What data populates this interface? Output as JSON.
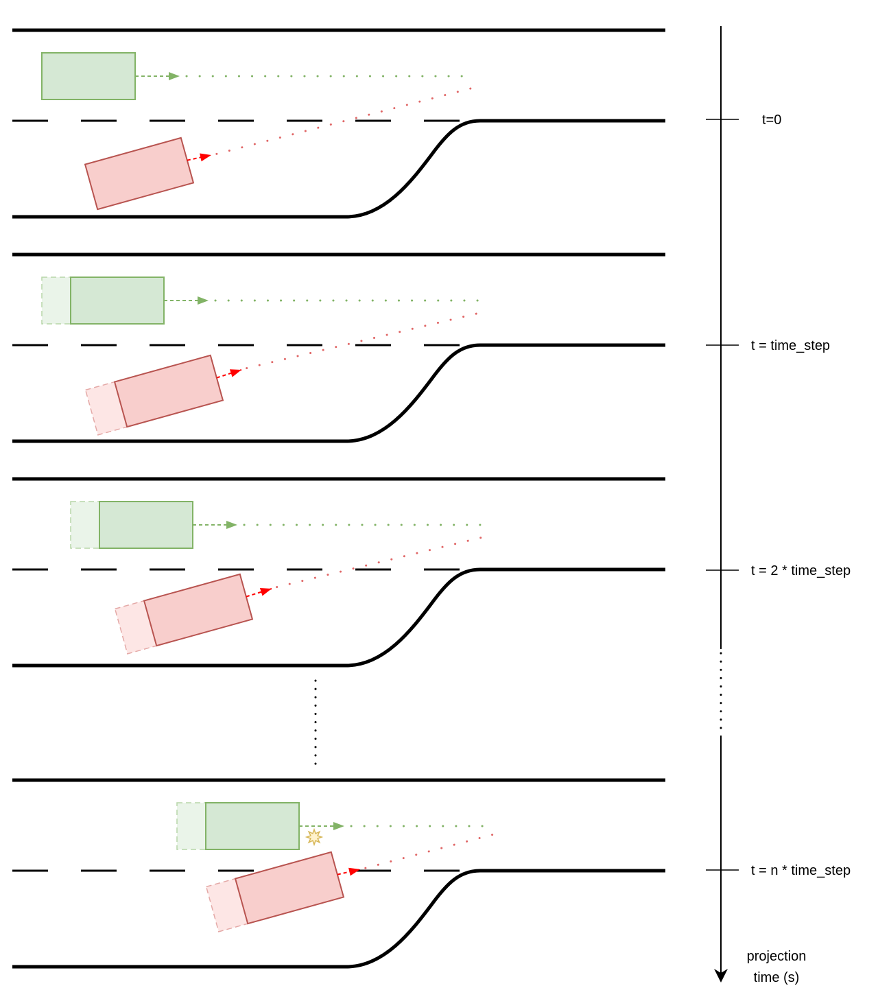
{
  "diagram": {
    "colors": {
      "road": "#000000",
      "green_fill": "#d5e8d4",
      "green_stroke": "#82b366",
      "green_ghost_fill": "#eaf4e9",
      "green_ghost_stroke": "#b7d6a8",
      "green_arrow": "#82b366",
      "red_fill": "#f8cecc",
      "red_stroke": "#b85450",
      "red_ghost_fill": "#fde6e5",
      "red_ghost_stroke": "#e4a9a7",
      "red_arrow": "#ff0000",
      "red_dots": "#e06666",
      "collision_fill": "#fff2cc",
      "collision_stroke": "#d6b656"
    },
    "icons": {
      "collision": "collision-star-icon",
      "time_axis_arrow": "arrow-down-icon"
    },
    "timeline": {
      "ticks": [
        {
          "label": "t=0"
        },
        {
          "label": "t = time_step"
        },
        {
          "label": "t = 2 * time_step"
        },
        {
          "label": "t = n * time_step"
        }
      ],
      "axis_label_line1": "projection",
      "axis_label_line2": "time (s)"
    },
    "frames": [
      {
        "step": 0,
        "collision": false
      },
      {
        "step": 1,
        "collision": false
      },
      {
        "step": 2,
        "collision": false
      },
      {
        "step": "n",
        "collision": true
      }
    ]
  }
}
